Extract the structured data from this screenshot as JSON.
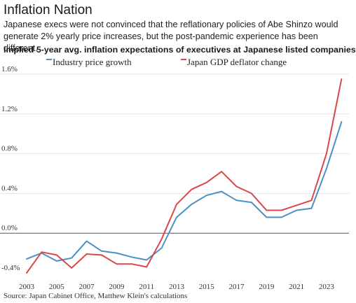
{
  "header": {
    "title": "Inflation Nation",
    "subtitle": "Japanese execs were not convinced that the reflationary policies of Abe Shinzo would generate 2% yearly price increases, but the post-pandemic experience has been different.",
    "chart_heading": "Implied 5-year avg. inflation expectations of executives at Japanese listed companies"
  },
  "source": "Source: Japan Cabinet Office, Matthew Klein's calculations",
  "chart_data": {
    "type": "line",
    "title": "Implied 5-year avg. inflation expectations of executives at Japanese listed companies",
    "xlabel": "",
    "ylabel": "",
    "xlim": [
      2003,
      2024.5
    ],
    "ylim": [
      -0.4,
      1.6
    ],
    "x_ticks": [
      2003,
      2005,
      2007,
      2009,
      2011,
      2013,
      2015,
      2017,
      2019,
      2021,
      2023
    ],
    "x_tick_labels": [
      "2003",
      "2005",
      "2007",
      "2009",
      "2011",
      "2013",
      "2015",
      "2017",
      "2019",
      "2021",
      "2023"
    ],
    "y_ticks": [
      -0.4,
      0.0,
      0.4,
      0.8,
      1.2,
      1.6
    ],
    "y_tick_labels": [
      "-0.4%",
      "0.0%",
      "0.4%",
      "0.8%",
      "1.2%",
      "1.6%"
    ],
    "zero_line": true,
    "legend_position": "top",
    "x": [
      2003,
      2004,
      2005,
      2006,
      2007,
      2008,
      2009,
      2010,
      2011,
      2012,
      2013,
      2014,
      2015,
      2016,
      2017,
      2018,
      2019,
      2020,
      2021,
      2022,
      2023,
      2024
    ],
    "series": [
      {
        "name": "Industry price growth",
        "color": "#4a90c4",
        "values": [
          -0.26,
          -0.2,
          -0.28,
          -0.25,
          -0.08,
          -0.18,
          -0.2,
          -0.24,
          -0.27,
          -0.15,
          0.16,
          0.29,
          0.38,
          0.42,
          0.33,
          0.31,
          0.16,
          0.16,
          0.23,
          0.25,
          0.65,
          1.12
        ]
      },
      {
        "name": "Japan GDP deflator change",
        "color": "#d94848",
        "values": [
          -0.4,
          -0.19,
          -0.22,
          -0.35,
          -0.21,
          -0.22,
          -0.31,
          -0.31,
          -0.34,
          -0.06,
          0.29,
          0.44,
          0.51,
          0.62,
          0.47,
          0.4,
          0.23,
          0.23,
          0.28,
          0.33,
          0.8,
          1.55
        ]
      }
    ]
  }
}
